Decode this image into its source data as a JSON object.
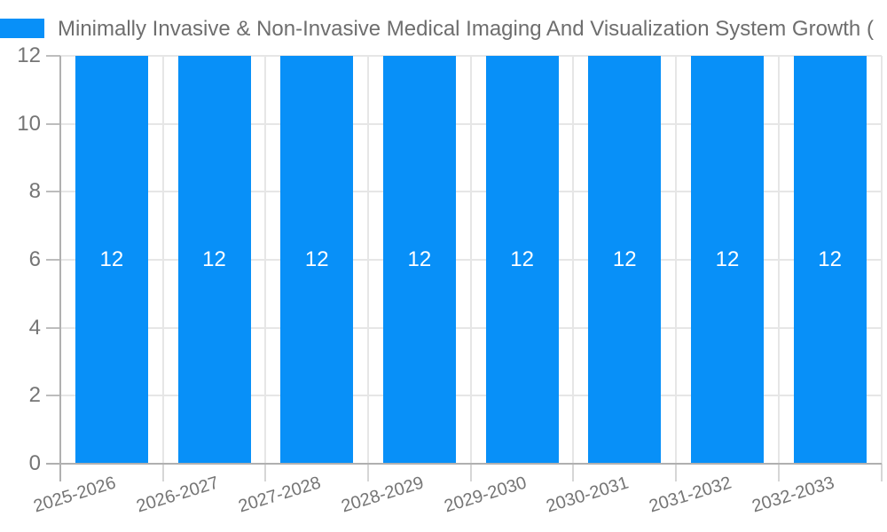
{
  "chart_data": {
    "type": "bar",
    "title": "Minimally Invasive & Non-Invasive Medical Imaging And Visualization System Growth (",
    "categories": [
      "2025-2026",
      "2026-2027",
      "2027-2028",
      "2028-2029",
      "2029-2030",
      "2030-2031",
      "2031-2032",
      "2032-2033"
    ],
    "values": [
      12,
      12,
      12,
      12,
      12,
      12,
      12,
      12
    ],
    "bar_value_labels": [
      "12",
      "12",
      "12",
      "12",
      "12",
      "12",
      "12",
      "12"
    ],
    "xlabel": "",
    "ylabel": "",
    "ylim": [
      0,
      12
    ],
    "yticks": [
      0,
      2,
      4,
      6,
      8,
      10,
      12
    ],
    "grid": true,
    "legend_position": "top-left",
    "colors": {
      "bar": "#0890f8",
      "bar_label_text": "#ffffff",
      "axis_text": "#757575",
      "title_text": "#6e6e6e",
      "gridline": "#e6e6e6",
      "axis_line": "#b0b0b0",
      "tick_stub": "#bdbdbd",
      "below_axis_tick": "#d6d6d6",
      "background": "#ffffff"
    }
  }
}
